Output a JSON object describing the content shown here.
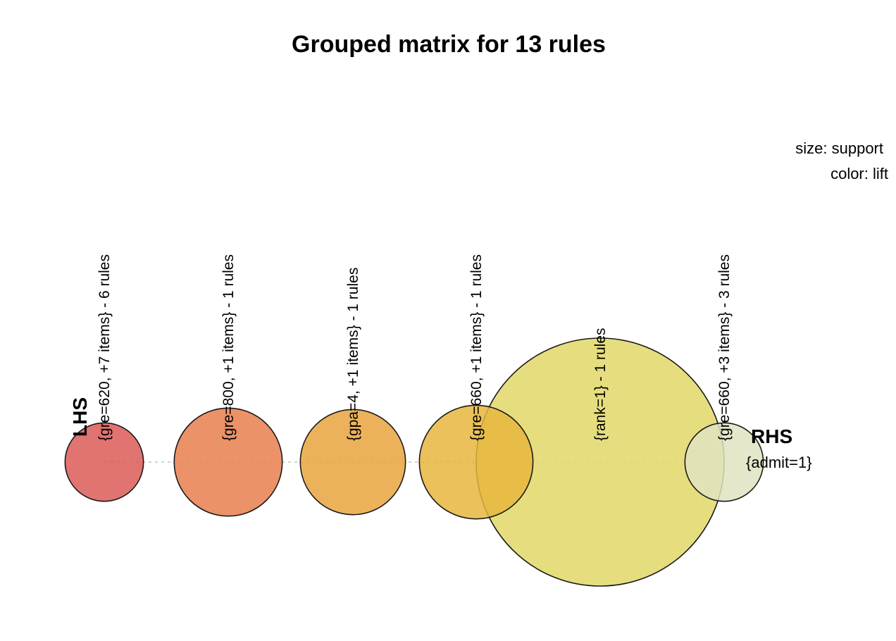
{
  "chart_data": {
    "type": "scatter",
    "title": "Grouped matrix for 13 rules",
    "legend": {
      "size_label": "size: support",
      "color_label": "color: lift",
      "placement": "top-right"
    },
    "lhs_axis_label": "LHS",
    "rhs_axis_label": "RHS",
    "rhs_items": [
      "{admit=1}"
    ],
    "lhs_groups": [
      {
        "label": "{gre=620, +7 items} - 6 rules",
        "support_rel": 0.1,
        "lift_rel": 1.0,
        "color": "#dc5a57"
      },
      {
        "label": "{gre=800, +1 items} - 1 rules",
        "support_rel": 0.19,
        "lift_rel": 0.85,
        "color": "#e77f4d"
      },
      {
        "label": "{gpa=4, +1 items} - 1 rules",
        "support_rel": 0.18,
        "lift_rel": 0.7,
        "color": "#e9a43e"
      },
      {
        "label": "{gre=660, +1 items} - 1 rules",
        "support_rel": 0.21,
        "lift_rel": 0.6,
        "color": "#e6b63d"
      },
      {
        "label": "{rank=1} - 1 rules",
        "support_rel": 1.0,
        "lift_rel": 0.4,
        "color": "#e2d867"
      },
      {
        "label": "{gre=660, +3 items} - 3 rules",
        "support_rel": 0.1,
        "lift_rel": 0.05,
        "color": "#dfe3c0"
      }
    ]
  }
}
